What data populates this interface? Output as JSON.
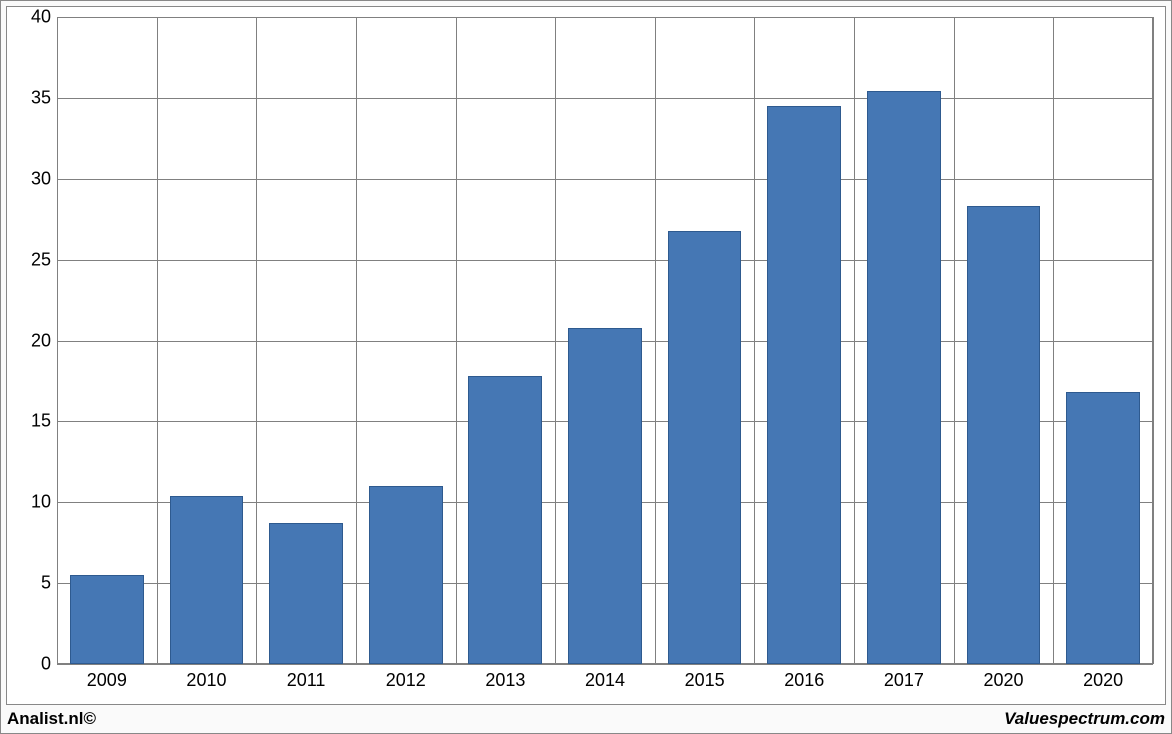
{
  "chart": {
    "type": "bar",
    "categories": [
      "2009",
      "2010",
      "2011",
      "2012",
      "2013",
      "2014",
      "2015",
      "2016",
      "2017",
      "2020",
      "2020"
    ],
    "values": [
      5.5,
      10.4,
      8.7,
      11.0,
      17.8,
      20.8,
      26.8,
      34.5,
      35.4,
      28.3,
      16.8
    ],
    "bar_color": "#4577b4",
    "bar_border_color": "#2e5a8f",
    "ylim": [
      0,
      40
    ],
    "ytick_step": 5,
    "yticks": [
      0,
      5,
      10,
      15,
      20,
      25,
      30,
      35,
      40
    ],
    "background_color": "#ffffff",
    "grid_color": "#808080",
    "bar_width_ratio": 0.74,
    "axis_label_fontsize": 18,
    "axis_label_color": "#000000"
  },
  "footer": {
    "left": "Analist.nl©",
    "right": "Valuespectrum.com"
  }
}
